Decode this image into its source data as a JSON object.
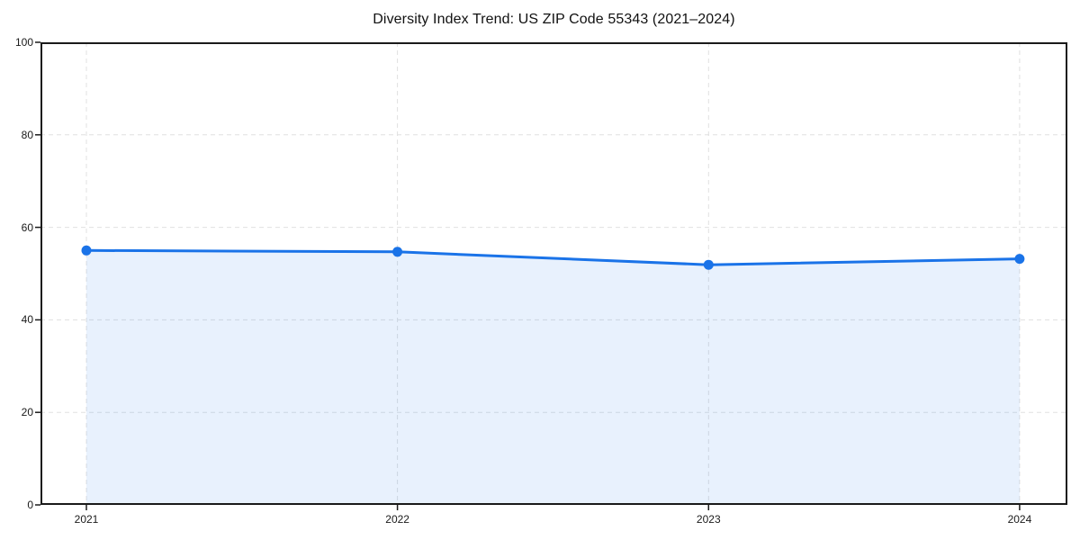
{
  "chart_data": {
    "type": "line",
    "title": "Diversity Index Trend: US ZIP Code 55343 (2021–2024)",
    "categories": [
      "2021",
      "2022",
      "2023",
      "2024"
    ],
    "series": [
      {
        "name": "Diversity Index",
        "values": [
          55.0,
          54.7,
          51.9,
          53.2
        ]
      }
    ],
    "xlabel": "",
    "ylabel": "",
    "ylim": [
      0,
      100
    ],
    "yticks": [
      0,
      20,
      40,
      60,
      80,
      100
    ],
    "grid": true,
    "grid_style": "dashed",
    "legend": "none",
    "marker": "circle",
    "area_fill": true,
    "colors": {
      "line": "#1a73e8",
      "marker": "#1a73e8",
      "fill": "rgba(26,115,232,0.10)",
      "grid": "#e0e0e0",
      "spine": "#1a1a1a",
      "text": "#1a1a1a",
      "background": "#ffffff"
    }
  }
}
